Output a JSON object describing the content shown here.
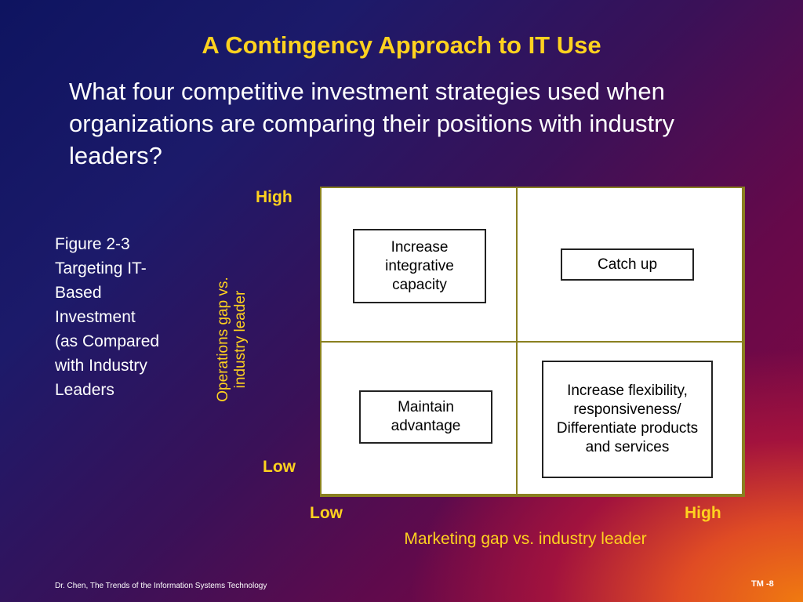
{
  "slide": {
    "title": "A Contingency Approach to IT Use",
    "question": "What four competitive investment strategies used when organizations are comparing their positions with industry leaders?",
    "caption_lines": [
      "Figure 2-3",
      "Targeting IT-",
      "Based",
      "Investment",
      "(as Compared",
      "with Industry",
      "Leaders"
    ],
    "footer_left": "Dr. Chen, The Trends of the Information Systems Technology",
    "footer_right": "TM -8"
  },
  "matrix": {
    "y_axis_label_line1": "Operations gap vs.",
    "y_axis_label_line2": "industry leader",
    "y_high": "High",
    "y_low": "Low",
    "x_low": "Low",
    "x_high": "High",
    "x_axis_label": "Marketing gap vs. industry leader",
    "quadrants": {
      "top_left": "Increase integrative capacity",
      "top_right": "Catch up",
      "bottom_left": "Maintain advantage",
      "bottom_right": "Increase flexibility, responsiveness/ Differentiate products and services"
    }
  },
  "colors": {
    "title": "#ffd21f",
    "text": "#ffffff",
    "grid_border": "#8a8020"
  }
}
